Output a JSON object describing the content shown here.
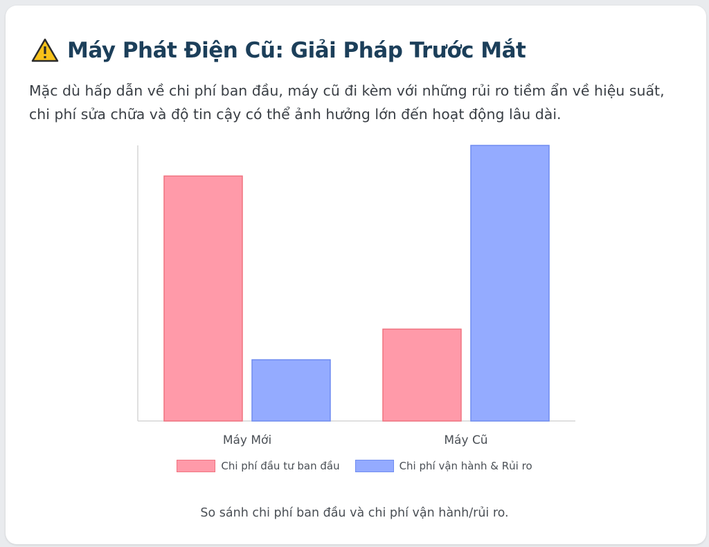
{
  "header": {
    "title": "Máy Phát Điện Cũ: Giải Pháp Trước Mắt",
    "icon": "warning-icon"
  },
  "description": "Mặc dù hấp dẫn về chi phí ban đầu, máy cũ đi kèm với những rủi ro tiềm ẩn về hiệu suất, chi phí sửa chữa và độ tin cậy có thể ảnh hưởng lớn đến hoạt động lâu dài.",
  "caption": "So sánh chi phí ban đầu và chi phí vận hành/rủi ro.",
  "chart_data": {
    "type": "bar",
    "categories": [
      "Máy Mới",
      "Máy Cũ"
    ],
    "series": [
      {
        "name": "Chi phí đầu tư ban đầu",
        "values": [
          8,
          3
        ],
        "fill": "#ff9aa9",
        "stroke": "#f0727f"
      },
      {
        "name": "Chi phí vận hành & Rủi ro",
        "values": [
          2,
          9
        ],
        "fill": "#94abff",
        "stroke": "#6f8cf0"
      }
    ],
    "ylim": [
      0,
      9
    ],
    "legend": "bottom",
    "grid": false
  }
}
